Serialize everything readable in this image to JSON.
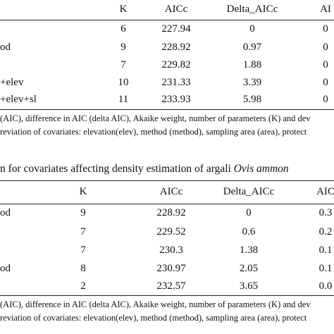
{
  "tables": [
    {
      "header": [
        "K",
        "AICc",
        "Delta_AICc",
        "AI"
      ],
      "rows": [
        [
          null,
          6,
          227.94,
          0,
          0
        ],
        [
          "od",
          9,
          228.92,
          0.97,
          0
        ],
        [
          null,
          7,
          229.82,
          1.88,
          0
        ],
        [
          "+elev",
          10,
          231.33,
          3.39,
          0
        ],
        [
          "+elev+sl",
          11,
          233.93,
          5.98,
          0
        ]
      ],
      "notes": [
        "(AIC), difference in AIC (delta AIC), Akaike weight, number of parameters (K) and dev",
        "reviation of covariates: elevation(elev), method (method), sampling area (area), protect"
      ]
    },
    {
      "caption": "n for covariates affecting density estimation of  argali",
      "caption_species": "Ovis ammon",
      "header": [
        "K",
        "AICc",
        "Delta_AICc",
        "AIC"
      ],
      "rows": [
        [
          "od",
          9,
          228.92,
          0,
          "0.3"
        ],
        [
          null,
          7,
          229.52,
          0.6,
          "0.2"
        ],
        [
          null,
          7,
          230.3,
          1.38,
          "0.1"
        ],
        [
          "od",
          8,
          230.97,
          2.05,
          "0.1"
        ],
        [
          null,
          2,
          232.57,
          3.65,
          "0.0"
        ]
      ],
      "notes": [
        "(AIC), difference in AIC (delta AIC), Akaike weight, number of parameters (K) and dev",
        "reviation of covariates: elevation(elev), method (method), sampling area (area), protect"
      ]
    }
  ]
}
